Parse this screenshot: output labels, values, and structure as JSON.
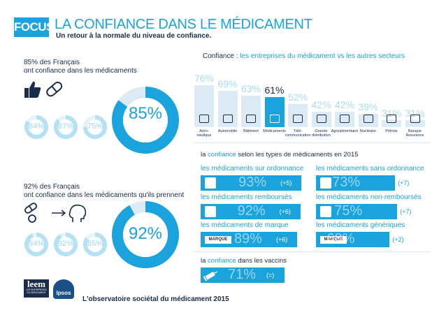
{
  "header": {
    "badge": "FOCUS",
    "title": "LA CONFIANCE DANS LE MÉDICAMENT",
    "subtitle": "Un retour à la normale du niveau de confiance."
  },
  "section1": {
    "line1": "85% des Français",
    "line2": "ont confiance dans les médicaments",
    "small": [
      {
        "value": "84%"
      },
      {
        "value": "87%"
      },
      {
        "value": "75%"
      }
    ],
    "big": {
      "value": "85%",
      "year": "2015",
      "fraction": 0.85
    }
  },
  "section2": {
    "line1": "92% des Français",
    "line2": "ont confiance dans les médicaments qu'ils prennent",
    "small": [
      {
        "value": "94%"
      },
      {
        "value": "92%"
      },
      {
        "value": "85%"
      }
    ],
    "big": {
      "value": "92%",
      "year": "2015",
      "fraction": 0.92
    }
  },
  "chart_data": {
    "type": "bar",
    "title_prefix": "Confiance : ",
    "title": "les entreprises du médicament vs les autres secteurs",
    "categories": [
      "Aéro-\nnautique",
      "Automobile",
      "Bâtiment",
      "Médicaments",
      "Télé-\ncommunication",
      "Grande\ndistribution",
      "Agroalimentaire",
      "Nucléaire",
      "Pétrole",
      "Banque\nAssurance"
    ],
    "values": [
      76,
      69,
      63,
      61,
      52,
      42,
      42,
      39,
      31,
      31
    ],
    "value_labels": [
      "76%",
      "69%",
      "63%",
      "61%",
      "52%",
      "42%",
      "42%",
      "39%",
      "31%",
      "31%"
    ],
    "highlight_index": 3,
    "ylim": [
      0,
      100
    ],
    "colors": {
      "bar": "#dbeaf5",
      "highlight": "#1aa3dc"
    }
  },
  "types": {
    "heading_pre": "la ",
    "heading_hl": "confiance",
    "heading_post": " selon les types de médicaments en 2015",
    "items": [
      {
        "title": "les médicaments sur ordonnance",
        "value": "93%",
        "delta": "(+5)",
        "icon": "prescription-icon"
      },
      {
        "title": "les médicaments sans ordonnance",
        "value": "73%",
        "delta": "(+7)",
        "icon": "no-prescription-icon"
      },
      {
        "title": "les médicaments remboursés",
        "value": "92%",
        "delta": "(+6)",
        "icon": "coin-icon"
      },
      {
        "title": "les médicaments non-remboursés",
        "value": "75%",
        "delta": "(+7)",
        "icon": "no-coin-icon"
      },
      {
        "title": "les médicaments de marque",
        "value": "89%",
        "delta": "(+6)",
        "icon": "brand-box-icon",
        "badge": "MARQUE"
      },
      {
        "title": "les médicaments génériques",
        "value": "68%",
        "delta": "(+2)",
        "icon": "generic-box-icon",
        "badge": "MARQUE"
      }
    ]
  },
  "vaccins": {
    "heading_pre": "la ",
    "heading_hl": "confiance",
    "heading_post": " dans les vaccins",
    "value": "71%",
    "delta": "(=)"
  },
  "footer": {
    "leem_name": "leem",
    "leem_sub": "LES ENTREPRISES\nDU MÉDICAMENT",
    "ipsos": "Ipsos",
    "text": "L'observatoire sociétal du médicament 2015"
  },
  "colors": {
    "accent": "#1aa3dc",
    "navy": "#1a2b4c",
    "light": "#dbeaf5"
  }
}
